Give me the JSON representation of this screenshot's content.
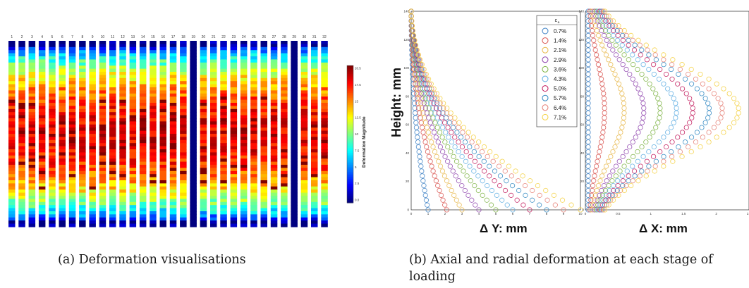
{
  "panel_a": {
    "strip_labels": [
      "1",
      "2",
      "3",
      "4",
      "5",
      "6",
      "7",
      "8",
      "9",
      "10",
      "11",
      "12",
      "13",
      "14",
      "15",
      "16",
      "17",
      "18",
      "19",
      "20",
      "21",
      "22",
      "23",
      "24",
      "25",
      "26",
      "27",
      "28",
      "29",
      "30",
      "31",
      "32"
    ],
    "colorbar_label": "Deformation Magnitude",
    "colorbar_ticks": [
      "20.5",
      "17.5",
      "15",
      "12.5",
      "10",
      "7.5",
      "5",
      "2.5",
      "0.0"
    ],
    "blank_strips": [
      19,
      29
    ],
    "caption": "(a)  Deformation visualisations"
  },
  "panel_b": {
    "ylabel": "Height: mm",
    "left_xlabel": "Δ Y: mm",
    "right_xlabel": "Δ X: mm",
    "left_yticks": [
      "140",
      "120",
      "100",
      "80",
      "60",
      "40",
      "20",
      "0"
    ],
    "left_xticks": [
      "0",
      "1",
      "2",
      "3",
      "4",
      "5",
      "6",
      "7",
      "8",
      "9",
      "10"
    ],
    "right_yticks": [
      "140",
      "120",
      "100",
      "80",
      "60",
      "40",
      "20",
      "0"
    ],
    "right_xticks": [
      "0",
      "0.5",
      "1",
      "1.5",
      "2",
      "2.5"
    ],
    "legend_title": "ε",
    "legend_title_sub": "a",
    "caption": "(b)  Axial and radial deformation at each stage of loading"
  },
  "chart_data": [
    {
      "type": "heatmap",
      "title": "",
      "colorbar_label": "Deformation Magnitude",
      "columns": [
        "1",
        "2",
        "3",
        "4",
        "5",
        "6",
        "7",
        "8",
        "9",
        "10",
        "11",
        "12",
        "13",
        "14",
        "15",
        "16",
        "17",
        "18",
        "19",
        "20",
        "21",
        "22",
        "23",
        "24",
        "25",
        "26",
        "27",
        "28",
        "29",
        "30",
        "31",
        "32"
      ],
      "zlim": [
        0,
        20.5
      ],
      "colormap": "jet"
    },
    {
      "type": "scatter",
      "xlabel": "Δ Y: mm",
      "ylabel": "Height: mm",
      "xlim": [
        0,
        10
      ],
      "ylim": [
        0,
        140
      ],
      "legend_title": "εa",
      "legend_position": "top-right",
      "series": [
        {
          "name": "0.7%",
          "color": "#3b7fc4",
          "y0": 140,
          "dx_max": 1.0
        },
        {
          "name": "1.4%",
          "color": "#d9534f",
          "y0": 140,
          "dx_max": 2.1
        },
        {
          "name": "2.1%",
          "color": "#e8b84a",
          "y0": 140,
          "dx_max": 3.0
        },
        {
          "name": "2.9%",
          "color": "#8e44ad",
          "y0": 140,
          "dx_max": 4.0
        },
        {
          "name": "3.6%",
          "color": "#7cb342",
          "y0": 140,
          "dx_max": 5.0
        },
        {
          "name": "4.3%",
          "color": "#5dade2",
          "y0": 140,
          "dx_max": 6.0
        },
        {
          "name": "5.0%",
          "color": "#c2185b",
          "y0": 140,
          "dx_max": 7.0
        },
        {
          "name": "5.7%",
          "color": "#2e86c1",
          "y0": 140,
          "dx_max": 8.0
        },
        {
          "name": "6.4%",
          "color": "#e67e73",
          "y0": 140,
          "dx_max": 9.0
        },
        {
          "name": "7.1%",
          "color": "#f4d03f",
          "y0": 140,
          "dx_max": 10.0
        }
      ]
    },
    {
      "type": "scatter",
      "xlabel": "Δ X: mm",
      "ylabel": "",
      "xlim": [
        0,
        2.5
      ],
      "ylim": [
        0,
        140
      ],
      "series": [
        {
          "name": "0.7%",
          "color": "#3b7fc4",
          "peak_dx": 0.0,
          "peak_y": 70
        },
        {
          "name": "1.4%",
          "color": "#d9534f",
          "peak_dx": 0.25,
          "peak_y": 70
        },
        {
          "name": "2.1%",
          "color": "#e8b84a",
          "peak_dx": 0.55,
          "peak_y": 70
        },
        {
          "name": "2.9%",
          "color": "#8e44ad",
          "peak_dx": 0.85,
          "peak_y": 70
        },
        {
          "name": "3.6%",
          "color": "#7cb342",
          "peak_dx": 1.1,
          "peak_y": 70
        },
        {
          "name": "4.3%",
          "color": "#5dade2",
          "peak_dx": 1.35,
          "peak_y": 70
        },
        {
          "name": "5.0%",
          "color": "#c2185b",
          "peak_dx": 1.6,
          "peak_y": 70
        },
        {
          "name": "5.7%",
          "color": "#2e86c1",
          "peak_dx": 1.85,
          "peak_y": 70
        },
        {
          "name": "6.4%",
          "color": "#e67e73",
          "peak_dx": 2.05,
          "peak_y": 70
        },
        {
          "name": "7.1%",
          "color": "#f4d03f",
          "peak_dx": 2.3,
          "peak_y": 70
        }
      ]
    }
  ]
}
